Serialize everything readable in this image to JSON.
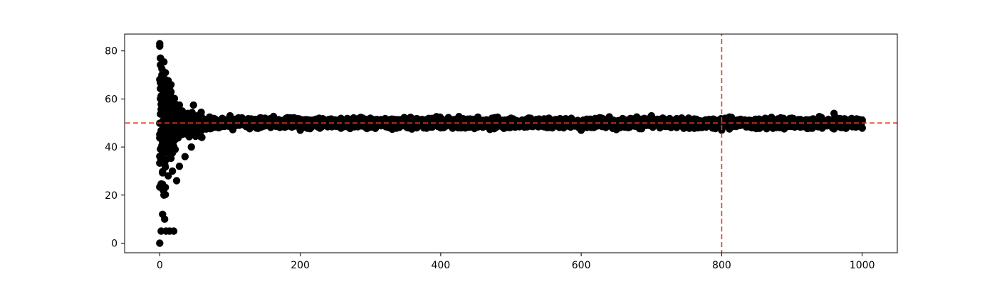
{
  "chart_data": {
    "type": "scatter",
    "title": "",
    "xlabel": "",
    "ylabel": "",
    "xlim": [
      -50,
      1050
    ],
    "ylim": [
      -4,
      87
    ],
    "x_ticks": [
      0,
      200,
      400,
      600,
      800,
      1000
    ],
    "y_ticks": [
      0,
      20,
      40,
      60,
      80
    ],
    "x_tick_labels": [
      "0",
      "200",
      "400",
      "600",
      "800",
      "1000"
    ],
    "y_tick_labels": [
      "0",
      "20",
      "40",
      "60",
      "80"
    ],
    "grid": false,
    "point_color": "#000000",
    "reference_color": "#e8391d",
    "reference_lines": {
      "horizontal_y": 50,
      "vertical_x": 800
    },
    "x_range": [
      0,
      1000
    ],
    "series": [
      {
        "values": [
          {
            "x": 0,
            "y": 82
          },
          {
            "x": 0,
            "y": 0
          },
          {
            "x": 1,
            "y": 77
          },
          {
            "x": 2,
            "y": 5
          },
          {
            "x": 3,
            "y": 70
          },
          {
            "x": 4,
            "y": 12
          },
          {
            "x": 5,
            "y": 65
          },
          {
            "x": 6,
            "y": 20
          },
          {
            "x": 8,
            "y": 62
          },
          {
            "x": 9,
            "y": 5
          },
          {
            "x": 10,
            "y": 58
          },
          {
            "x": 12,
            "y": 28
          },
          {
            "x": 14,
            "y": 5
          },
          {
            "x": 16,
            "y": 56
          },
          {
            "x": 18,
            "y": 30
          },
          {
            "x": 20,
            "y": 5
          },
          {
            "x": 22,
            "y": 58
          },
          {
            "x": 24,
            "y": 26
          },
          {
            "x": 26,
            "y": 56
          },
          {
            "x": 28,
            "y": 32
          },
          {
            "x": 32,
            "y": 55
          },
          {
            "x": 36,
            "y": 36
          },
          {
            "x": 40,
            "y": 54
          },
          {
            "x": 45,
            "y": 40
          },
          {
            "x": 50,
            "y": 53
          },
          {
            "x": 60,
            "y": 44
          },
          {
            "x": 100,
            "y": 53
          },
          {
            "x": 200,
            "y": 47
          },
          {
            "x": 300,
            "y": 52
          },
          {
            "x": 400,
            "y": 48
          },
          {
            "x": 500,
            "y": 52
          },
          {
            "x": 600,
            "y": 47
          },
          {
            "x": 700,
            "y": 53
          },
          {
            "x": 800,
            "y": 47
          },
          {
            "x": 900,
            "y": 52
          },
          {
            "x": 960,
            "y": 54
          },
          {
            "x": 1000,
            "y": 48
          }
        ]
      }
    ]
  }
}
